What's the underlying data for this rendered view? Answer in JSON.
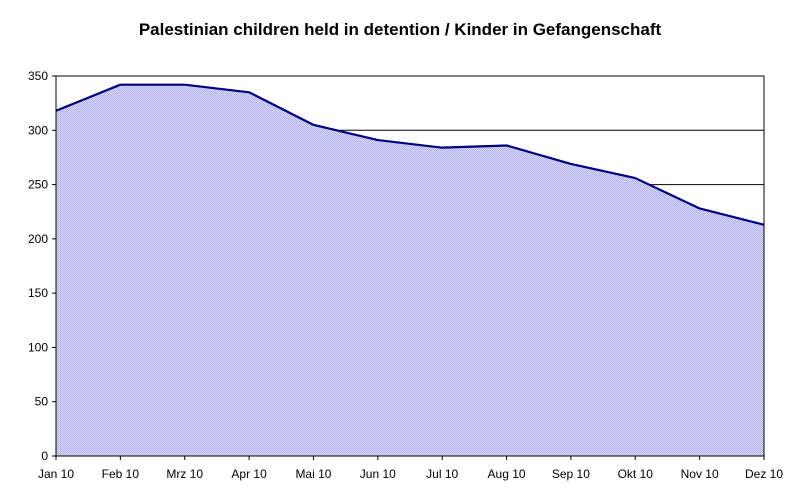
{
  "chart_data": {
    "type": "area",
    "title": "Palestinian children held in detention / Kinder in Gefangenschaft",
    "xlabel": "",
    "ylabel": "",
    "categories": [
      "Jan 10",
      "Feb 10",
      "Mrz 10",
      "Apr 10",
      "Mai 10",
      "Jun 10",
      "Jul 10",
      "Aug 10",
      "Sep 10",
      "Okt 10",
      "Nov 10",
      "Dez 10"
    ],
    "series": [
      {
        "values": [
          318,
          342,
          342,
          335,
          305,
          291,
          284,
          286,
          269,
          256,
          228,
          213
        ]
      }
    ],
    "ylim": [
      0,
      350
    ],
    "yticks": [
      0,
      50,
      100,
      150,
      200,
      250,
      300,
      350
    ],
    "grid": "horizontal",
    "legend": "none",
    "colors": {
      "fill": "#c8c8f4",
      "line": "#000080",
      "grid": "#000000",
      "axis": "#000000"
    }
  }
}
